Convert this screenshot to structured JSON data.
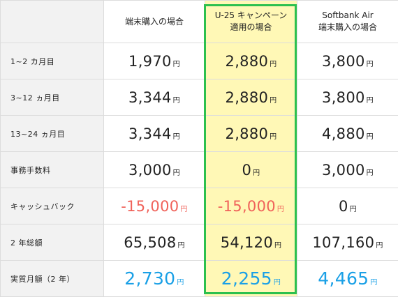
{
  "headers": [
    "",
    "端末購入の場合",
    "U-25 キャンペーン\n適用の場合",
    "Softbank Air\n端末購入の場合"
  ],
  "unit": "円",
  "colors": {
    "highlight_bg": "#fff8b6",
    "highlight_border": "#2cc04e",
    "negative": "#f0625a",
    "emphasis": "#1aa0e6"
  },
  "rows": [
    {
      "label": "1~2 カ月目",
      "values": [
        "1,970",
        "2,880",
        "3,800"
      ],
      "style": [
        "",
        "",
        ""
      ]
    },
    {
      "label": "3~12 ヵ月目",
      "values": [
        "3,344",
        "2,880",
        "3,800"
      ],
      "style": [
        "",
        "",
        ""
      ]
    },
    {
      "label": "13~24 ヵ月目",
      "values": [
        "3,344",
        "2,880",
        "4,880"
      ],
      "style": [
        "",
        "",
        ""
      ]
    },
    {
      "label": "事務手数料",
      "values": [
        "3,000",
        "0",
        "3,000"
      ],
      "style": [
        "",
        "",
        ""
      ]
    },
    {
      "label": "キャッシュバック",
      "values": [
        "-15,000",
        "-15,000",
        "0"
      ],
      "style": [
        "red",
        "red",
        ""
      ]
    },
    {
      "label": "2 年総額",
      "values": [
        "65,508",
        "54,120",
        "107,160"
      ],
      "style": [
        "",
        "",
        ""
      ]
    },
    {
      "label": "実質月額（2 年）",
      "values": [
        "2,730",
        "2,255",
        "4,465"
      ],
      "style": [
        "blue",
        "blue",
        "blue"
      ]
    }
  ]
}
